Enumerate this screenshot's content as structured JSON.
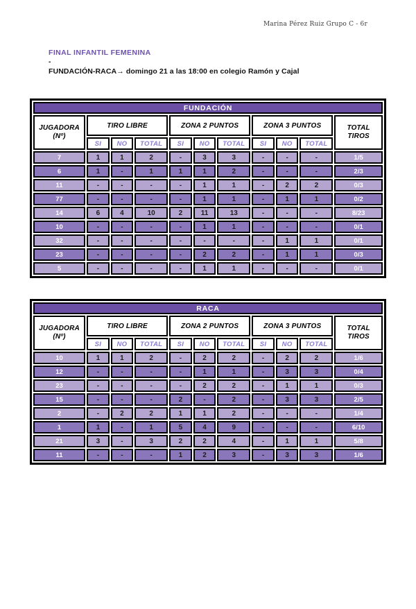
{
  "page": {
    "author_line": "Marina Pérez Ruiz Grupo C - 6r",
    "title": "FINAL INFANTIL FEMENINA",
    "dash": "-",
    "match_line": "FUNDACIÓN-RACA→ domingo 21 a las 18:00 en colegio Ramón y Cajal"
  },
  "columns": {
    "player_line1": "JUGADORA",
    "player_line2": "(Nº)",
    "groups": [
      "TIRO LIBRE",
      "ZONA 2 PUNTOS",
      "ZONA 3 PUNTOS"
    ],
    "sub": [
      "SI",
      "NO",
      "TOTAL"
    ],
    "total_line1": "TOTAL",
    "total_line2": "TIROS"
  },
  "tables": [
    {
      "name": "FUNDACIÓN",
      "rows": [
        {
          "player": "7",
          "cells": [
            "1",
            "1",
            "2",
            "-",
            "3",
            "3",
            "-",
            "-",
            "-"
          ],
          "total": "1/5"
        },
        {
          "player": "6",
          "cells": [
            "1",
            "-",
            "1",
            "1",
            "1",
            "2",
            "-",
            "-",
            "-"
          ],
          "total": "2/3"
        },
        {
          "player": "11",
          "cells": [
            "-",
            "-",
            "-",
            "-",
            "1",
            "1",
            "-",
            "2",
            "2"
          ],
          "total": "0/3"
        },
        {
          "player": "77",
          "cells": [
            "-",
            "-",
            "-",
            "-",
            "1",
            "1",
            "-",
            "1",
            "1"
          ],
          "total": "0/2"
        },
        {
          "player": "14",
          "cells": [
            "6",
            "4",
            "10",
            "2",
            "11",
            "13",
            "-",
            "-",
            "-"
          ],
          "total": "8/23"
        },
        {
          "player": "10",
          "cells": [
            "-",
            "-",
            "-",
            "-",
            "1",
            "1",
            "-",
            "-",
            "-"
          ],
          "total": "0/1"
        },
        {
          "player": "32",
          "cells": [
            "-",
            "-",
            "-",
            "-",
            "-",
            "-",
            "-",
            "1",
            "1"
          ],
          "total": "0/1"
        },
        {
          "player": "23",
          "cells": [
            "-",
            "-",
            "-",
            "-",
            "2",
            "2",
            "-",
            "1",
            "1"
          ],
          "total": "0/3"
        },
        {
          "player": "5",
          "cells": [
            "-",
            "-",
            "-",
            "-",
            "1",
            "1",
            "-",
            "-",
            "-"
          ],
          "total": "0/1"
        }
      ]
    },
    {
      "name": "RACA",
      "rows": [
        {
          "player": "10",
          "cells": [
            "1",
            "1",
            "2",
            "-",
            "2",
            "2",
            "-",
            "2",
            "2"
          ],
          "total": "1/6"
        },
        {
          "player": "12",
          "cells": [
            "-",
            "-",
            "-",
            "-",
            "1",
            "1",
            "-",
            "3",
            "3"
          ],
          "total": "0/4"
        },
        {
          "player": "23",
          "cells": [
            "-",
            "-",
            "-",
            "-",
            "2",
            "2",
            "-",
            "1",
            "1"
          ],
          "total": "0/3"
        },
        {
          "player": "15",
          "cells": [
            "-",
            "-",
            "-",
            "2",
            "-",
            "2",
            "-",
            "3",
            "3"
          ],
          "total": "2/5"
        },
        {
          "player": "2",
          "cells": [
            "-",
            "2",
            "2",
            "1",
            "1",
            "2",
            "-",
            "-",
            "-"
          ],
          "total": "1/4"
        },
        {
          "player": "1",
          "cells": [
            "1",
            "-",
            "1",
            "5",
            "4",
            "9",
            "-",
            "-",
            "-"
          ],
          "total": "6/10"
        },
        {
          "player": "21",
          "cells": [
            "3",
            "-",
            "3",
            "2",
            "2",
            "4",
            "-",
            "1",
            "1"
          ],
          "total": "5/8"
        },
        {
          "player": "11",
          "cells": [
            "-",
            "-",
            "-",
            "1",
            "2",
            "3",
            "-",
            "3",
            "3"
          ],
          "total": "1/6"
        }
      ]
    }
  ],
  "colors": {
    "bar": "#6a4fa4",
    "row_light": "#b3a5d0",
    "row_dark": "#8a76ba",
    "subheader_text": "#8b7cd1",
    "title": "#6e51b0"
  }
}
